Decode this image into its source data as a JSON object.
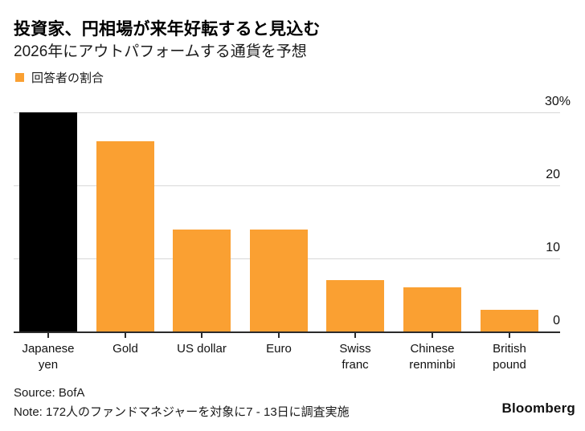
{
  "header": {
    "title": "投資家、円相場が来年好転すると見込む",
    "subtitle": "2026年にアウトパフォームする通貨を予想"
  },
  "legend": {
    "label": "回答者の割合",
    "swatch_color": "#FAA032"
  },
  "chart_data": {
    "type": "bar",
    "title": "投資家、円相場が来年好転すると見込む",
    "subtitle": "2026年にアウトパフォームする通貨を予想",
    "series_name": "回答者の割合",
    "categories": [
      "Japanese yen",
      "Gold",
      "US dollar",
      "Euro",
      "Swiss franc",
      "Chinese renminbi",
      "British pound"
    ],
    "category_lines": [
      [
        "Japanese",
        "yen"
      ],
      [
        "Gold"
      ],
      [
        "US dollar"
      ],
      [
        "Euro"
      ],
      [
        "Swiss",
        "franc"
      ],
      [
        "Chinese",
        "renminbi"
      ],
      [
        "British",
        "pound"
      ]
    ],
    "values": [
      30,
      26,
      14,
      14,
      7,
      6,
      3
    ],
    "unit": "%",
    "bar_colors": [
      "#000000",
      "#FAA032",
      "#FAA032",
      "#FAA032",
      "#FAA032",
      "#FAA032",
      "#FAA032"
    ],
    "ylim": [
      0,
      30
    ],
    "yticks": [
      {
        "value": 30,
        "label": "30%"
      },
      {
        "value": 20,
        "label": "20"
      },
      {
        "value": 10,
        "label": "10"
      },
      {
        "value": 0,
        "label": "0"
      }
    ],
    "grid": "horizontal",
    "y_axis_side": "right",
    "legend_position": "top-left"
  },
  "footer": {
    "source": "Source: BofA",
    "note": "Note: 172人のファンドマネジャーを対象に7 - 13日に調査実施",
    "brand": "Bloomberg"
  },
  "colors": {
    "accent_orange": "#FAA032",
    "bar_black": "#000000",
    "gridline": "#D8D8D8",
    "axis_line": "#2B2B2B",
    "text": "#111111",
    "background": "#FFFFFF"
  }
}
